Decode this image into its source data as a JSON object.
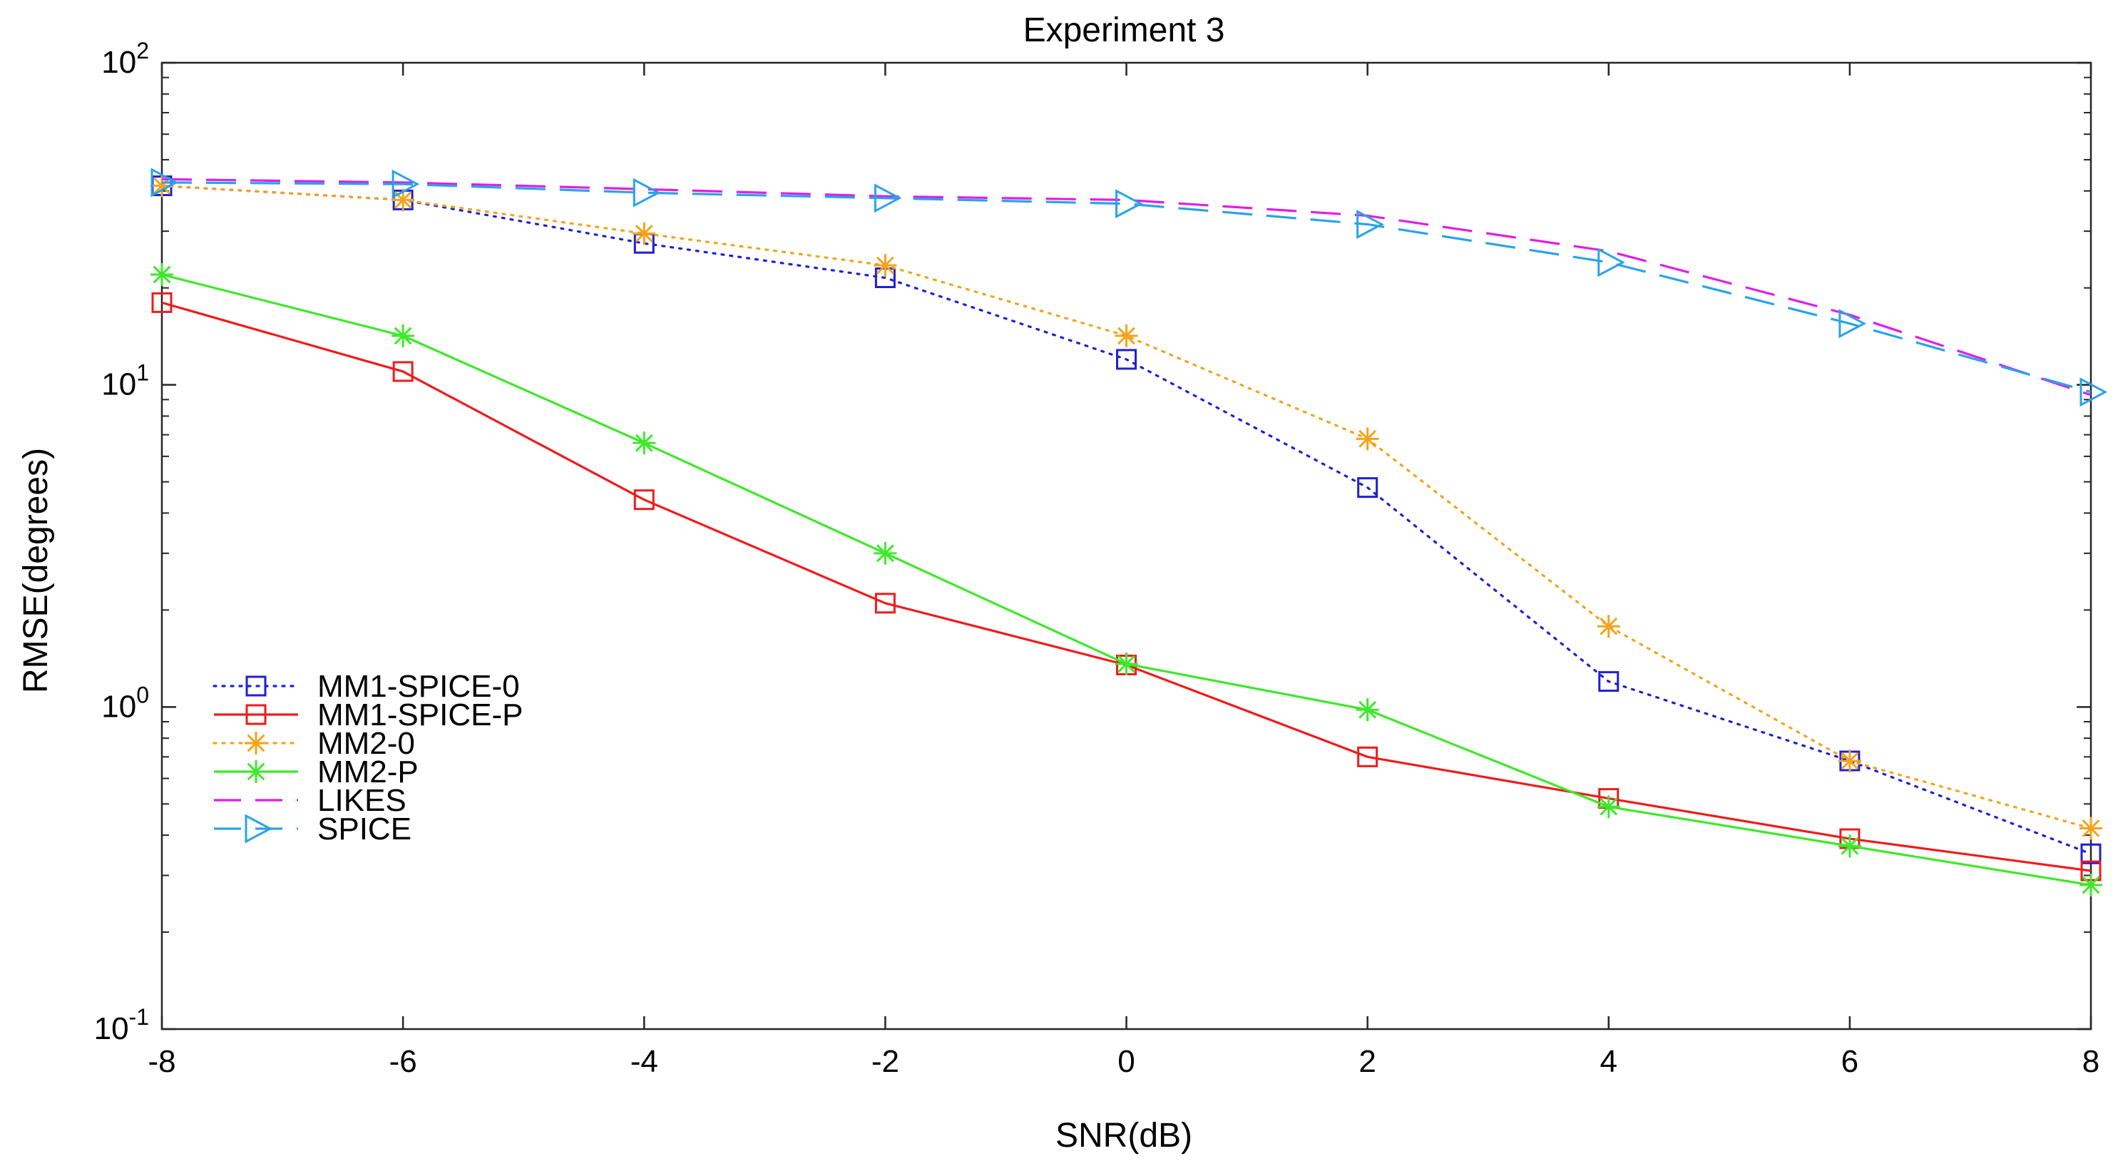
{
  "chart_data": {
    "type": "line",
    "title": "Experiment 3",
    "xlabel": "SNR(dB)",
    "ylabel": "RMSE(degrees)",
    "yscale": "log",
    "xlim": [
      -8,
      8
    ],
    "ylim": [
      0.1,
      100
    ],
    "x": [
      -8,
      -6,
      -4,
      -2,
      0,
      2,
      4,
      6,
      8
    ],
    "xticks": [
      "-8",
      "-6",
      "-4",
      "-2",
      "0",
      "2",
      "4",
      "6",
      "8"
    ],
    "yticks": [
      {
        "value": 0.1,
        "base": "10",
        "exp": "-1"
      },
      {
        "value": 1,
        "base": "10",
        "exp": "0"
      },
      {
        "value": 10,
        "base": "10",
        "exp": "1"
      },
      {
        "value": 100,
        "base": "10",
        "exp": "2"
      }
    ],
    "legend_position": "bottom-left",
    "series": [
      {
        "name": "MM1-SPICE-0",
        "color": "#1f1fd6",
        "dash": "dotted",
        "marker": "square",
        "values": [
          41.5,
          37.5,
          27.5,
          21.5,
          12.0,
          4.8,
          1.2,
          0.68,
          0.35
        ]
      },
      {
        "name": "MM1-SPICE-P",
        "color": "#ee1c1c",
        "dash": "solid",
        "marker": "square",
        "values": [
          18.0,
          11.0,
          4.4,
          2.1,
          1.35,
          0.7,
          0.52,
          0.39,
          0.31
        ]
      },
      {
        "name": "MM2-0",
        "color": "#f5a31a",
        "dash": "dotted",
        "marker": "asterisk",
        "values": [
          41.5,
          37.5,
          29.5,
          23.5,
          14.2,
          6.8,
          1.78,
          0.68,
          0.42
        ]
      },
      {
        "name": "MM2-P",
        "color": "#3ee82b",
        "dash": "solid",
        "marker": "asterisk",
        "values": [
          22.0,
          14.2,
          6.6,
          3.0,
          1.36,
          0.98,
          0.49,
          0.37,
          0.28
        ]
      },
      {
        "name": "LIKES",
        "color": "#e01ee6",
        "dash": "dashed",
        "marker": "none",
        "values": [
          43.5,
          42.5,
          40.5,
          38.5,
          37.5,
          33.5,
          26.0,
          16.5,
          9.3
        ]
      },
      {
        "name": "SPICE",
        "color": "#2aa3e8",
        "dash": "dashed",
        "marker": "triangle-right",
        "values": [
          42.5,
          42.0,
          39.5,
          38.0,
          36.5,
          31.5,
          24.0,
          15.5,
          9.5
        ]
      }
    ]
  }
}
